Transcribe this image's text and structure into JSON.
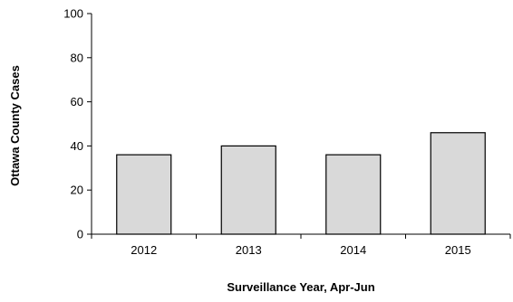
{
  "chart_data": {
    "type": "bar",
    "title": "",
    "xlabel": "Surveillance Year, Apr-Jun",
    "ylabel": "Ottawa County Cases",
    "categories": [
      "2012",
      "2013",
      "2014",
      "2015"
    ],
    "values": [
      36,
      40,
      36,
      46
    ],
    "ylim": [
      0,
      100
    ],
    "yticks": [
      "0",
      "20",
      "40",
      "60",
      "80",
      "100"
    ],
    "grid": false,
    "legend": "none",
    "colors": {
      "bar_fill": "#d9d9d9",
      "bar_stroke": "#000000",
      "axis": "#000000",
      "text": "#000000"
    }
  }
}
